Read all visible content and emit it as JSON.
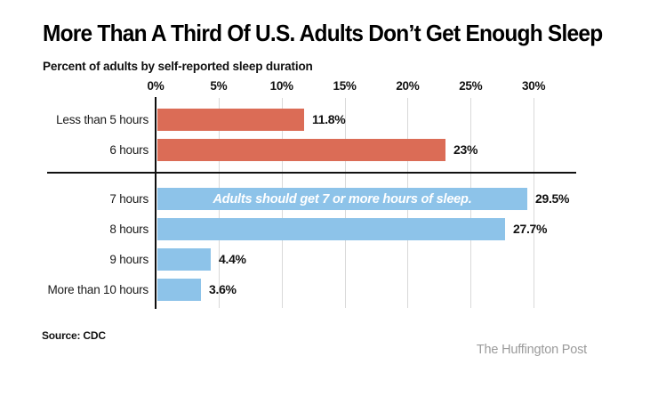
{
  "header": {
    "title": "More Than A Third Of U.S. Adults Don’t Get Enough Sleep",
    "subtitle": "Percent of adults by self-reported sleep duration"
  },
  "footer": {
    "source": "Source: CDC",
    "credit": "The Huffington Post"
  },
  "colors": {
    "insufficient_red": "#db6c56",
    "sufficient_blue": "#8dc3e9",
    "grid": "#d9d9d9",
    "axis": "#0d0d0d",
    "credit_gray": "#9b9b9b",
    "annotation_text": "#ffffff"
  },
  "chart_data": {
    "type": "bar",
    "orientation": "horizontal",
    "title": "More Than A Third Of U.S. Adults Don’t Get Enough Sleep",
    "subtitle": "Percent of adults by self-reported sleep duration",
    "xlabel": "",
    "ylabel": "",
    "xlim": [
      0,
      33
    ],
    "grid": true,
    "ticks": [
      {
        "value": 0,
        "label": "0%"
      },
      {
        "value": 5,
        "label": "5%"
      },
      {
        "value": 10,
        "label": "10%"
      },
      {
        "value": 15,
        "label": "15%"
      },
      {
        "value": 20,
        "label": "20%"
      },
      {
        "value": 25,
        "label": "25%"
      },
      {
        "value": 30,
        "label": "30%"
      }
    ],
    "annotation": "Adults should get 7 or more hours of sleep.",
    "groups": [
      {
        "name": "insufficient-sleep",
        "color": "#db6c56",
        "bars": [
          {
            "label": "Less than 5 hours",
            "value": 11.8,
            "value_label": "11.8%"
          },
          {
            "label": "6 hours",
            "value": 23,
            "value_label": "23%"
          }
        ]
      },
      {
        "name": "sufficient-sleep",
        "color": "#8dc3e9",
        "bars": [
          {
            "label": "7 hours",
            "value": 29.5,
            "value_label": "29.5%",
            "annotation": "Adults should get 7 or more hours of sleep."
          },
          {
            "label": "8 hours",
            "value": 27.7,
            "value_label": "27.7%"
          },
          {
            "label": "9 hours",
            "value": 4.4,
            "value_label": "4.4%"
          },
          {
            "label": "More than 10 hours",
            "value": 3.6,
            "value_label": "3.6%"
          }
        ]
      }
    ]
  }
}
